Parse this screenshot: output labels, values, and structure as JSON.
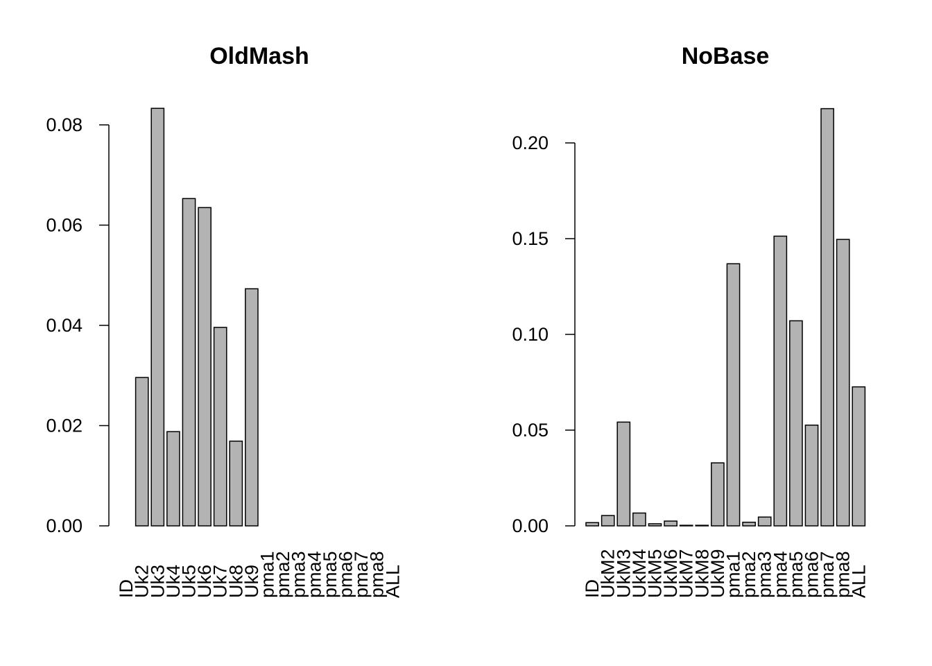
{
  "chart_data": [
    {
      "type": "bar",
      "title": "OldMash",
      "xlabel": "",
      "ylabel": "",
      "categories": [
        "ID",
        "Uk2",
        "Uk3",
        "Uk4",
        "Uk5",
        "Uk6",
        "Uk7",
        "Uk8",
        "Uk9",
        "pma1",
        "pma2",
        "pma3",
        "pma4",
        "pma5",
        "pma6",
        "pma7",
        "pma8",
        "ALL"
      ],
      "values": [
        0.0,
        0.0296,
        0.0833,
        0.0188,
        0.0653,
        0.0635,
        0.0396,
        0.0169,
        0.0473,
        0,
        0,
        0,
        0,
        0,
        0,
        0,
        0,
        0
      ],
      "ylim": [
        0,
        0.08
      ],
      "yticks": [
        "0.00",
        "0.02",
        "0.04",
        "0.06",
        "0.08"
      ],
      "bar_color": "#b3b3b3",
      "grid": false
    },
    {
      "type": "bar",
      "title": "NoBase",
      "xlabel": "",
      "ylabel": "",
      "categories": [
        "ID",
        "UkM2",
        "UkM3",
        "UkM4",
        "UkM5",
        "UkM6",
        "UkM7",
        "UkM8",
        "UkM9",
        "pma1",
        "pma2",
        "pma3",
        "pma4",
        "pma5",
        "pma6",
        "pma7",
        "pma8",
        "ALL"
      ],
      "values": [
        0.0017,
        0.0054,
        0.0542,
        0.0067,
        0.0011,
        0.0025,
        0.0003,
        0.0003,
        0.0329,
        0.1369,
        0.0019,
        0.0046,
        0.1513,
        0.1071,
        0.0526,
        0.2179,
        0.1496,
        0.0726
      ],
      "ylim": [
        0,
        0.2
      ],
      "yticks": [
        "0.00",
        "0.05",
        "0.10",
        "0.15",
        "0.20"
      ],
      "bar_color": "#b3b3b3",
      "grid": false
    }
  ]
}
